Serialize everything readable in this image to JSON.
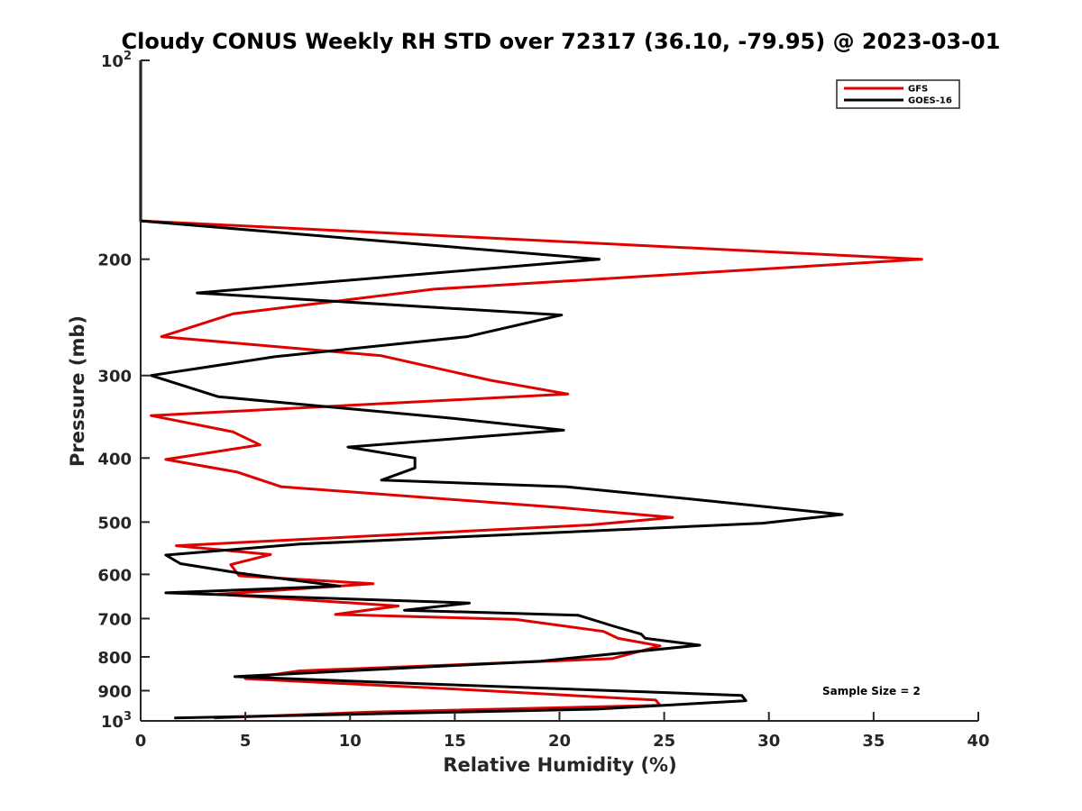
{
  "chart_data": {
    "type": "line",
    "title": "Cloudy CONUS Weekly RH STD over 72317 (36.10, -79.95) @ 2023-03-01",
    "xlabel": "Relative Humidity (%)",
    "ylabel": "Pressure (mb)",
    "xlim": [
      0,
      40
    ],
    "ylim": [
      100,
      1000
    ],
    "y_scale": "log",
    "y_reversed": true,
    "x_ticks": [
      {
        "value": 0,
        "label": "0"
      },
      {
        "value": 5,
        "label": "5"
      },
      {
        "value": 10,
        "label": "10"
      },
      {
        "value": 15,
        "label": "15"
      },
      {
        "value": 20,
        "label": "20"
      },
      {
        "value": 25,
        "label": "25"
      },
      {
        "value": 30,
        "label": "30"
      },
      {
        "value": 35,
        "label": "35"
      },
      {
        "value": 40,
        "label": "40"
      }
    ],
    "y_ticks": [
      {
        "value": 100,
        "label": "10",
        "sup": "2"
      },
      {
        "value": 200,
        "label": "200",
        "sup": ""
      },
      {
        "value": 300,
        "label": "300",
        "sup": ""
      },
      {
        "value": 400,
        "label": "400",
        "sup": ""
      },
      {
        "value": 500,
        "label": "500",
        "sup": ""
      },
      {
        "value": 600,
        "label": "600",
        "sup": ""
      },
      {
        "value": 700,
        "label": "700",
        "sup": ""
      },
      {
        "value": 800,
        "label": "800",
        "sup": ""
      },
      {
        "value": 900,
        "label": "900",
        "sup": ""
      },
      {
        "value": 1000,
        "label": "10",
        "sup": "3"
      }
    ],
    "grid": false,
    "legend_position": "top-right",
    "annotation": "Sample Size = 2",
    "series": [
      {
        "name": "GFS",
        "color": "#e00000",
        "points": [
          [
            0,
            100
          ],
          [
            0,
            175
          ],
          [
            37.3,
            200
          ],
          [
            14,
            222
          ],
          [
            4.4,
            242
          ],
          [
            1,
            262
          ],
          [
            11.5,
            280
          ],
          [
            16.7,
            305
          ],
          [
            20.4,
            320
          ],
          [
            0.5,
            345
          ],
          [
            4.4,
            365
          ],
          [
            5.7,
            382
          ],
          [
            1.2,
            402
          ],
          [
            4.6,
            420
          ],
          [
            6.7,
            442
          ],
          [
            19.9,
            475
          ],
          [
            25.4,
            492
          ],
          [
            21.5,
            505
          ],
          [
            1.7,
            543
          ],
          [
            6.2,
            560
          ],
          [
            4.3,
            580
          ],
          [
            4.7,
            603
          ],
          [
            11.1,
            620
          ],
          [
            3.7,
            643
          ],
          [
            12.3,
            670
          ],
          [
            9.3,
            690
          ],
          [
            17.9,
            702
          ],
          [
            22.1,
            732
          ],
          [
            22.8,
            750
          ],
          [
            24.8,
            770
          ],
          [
            22.5,
            805
          ],
          [
            7.6,
            840
          ],
          [
            5,
            863
          ],
          [
            15.6,
            897
          ],
          [
            24.6,
            930
          ],
          [
            24.8,
            947
          ],
          [
            11,
            970
          ],
          [
            3.5,
            990
          ]
        ]
      },
      {
        "name": "GOES-16",
        "color": "#000000",
        "points": [
          [
            0,
            100
          ],
          [
            0,
            175
          ],
          [
            21.9,
            200
          ],
          [
            2.7,
            225
          ],
          [
            20.1,
            243
          ],
          [
            15.6,
            262
          ],
          [
            6.4,
            281
          ],
          [
            0.5,
            300
          ],
          [
            3.7,
            323
          ],
          [
            14.8,
            348
          ],
          [
            20.2,
            363
          ],
          [
            9.9,
            385
          ],
          [
            13.1,
            400
          ],
          [
            13.1,
            414
          ],
          [
            11.5,
            432
          ],
          [
            20.3,
            442
          ],
          [
            27.3,
            465
          ],
          [
            33.5,
            487
          ],
          [
            29.7,
            502
          ],
          [
            7.6,
            540
          ],
          [
            1.2,
            561
          ],
          [
            1.9,
            578
          ],
          [
            4.8,
            598
          ],
          [
            9.5,
            625
          ],
          [
            1.2,
            640
          ],
          [
            15.7,
            663
          ],
          [
            12.6,
            680
          ],
          [
            20.9,
            692
          ],
          [
            22.6,
            719
          ],
          [
            23.9,
            739
          ],
          [
            24.1,
            750
          ],
          [
            26.7,
            768
          ],
          [
            19.1,
            812
          ],
          [
            4.5,
            857
          ],
          [
            12.8,
            877
          ],
          [
            28.7,
            915
          ],
          [
            28.9,
            932
          ],
          [
            21.7,
            960
          ],
          [
            1.6,
            990
          ]
        ]
      }
    ]
  }
}
